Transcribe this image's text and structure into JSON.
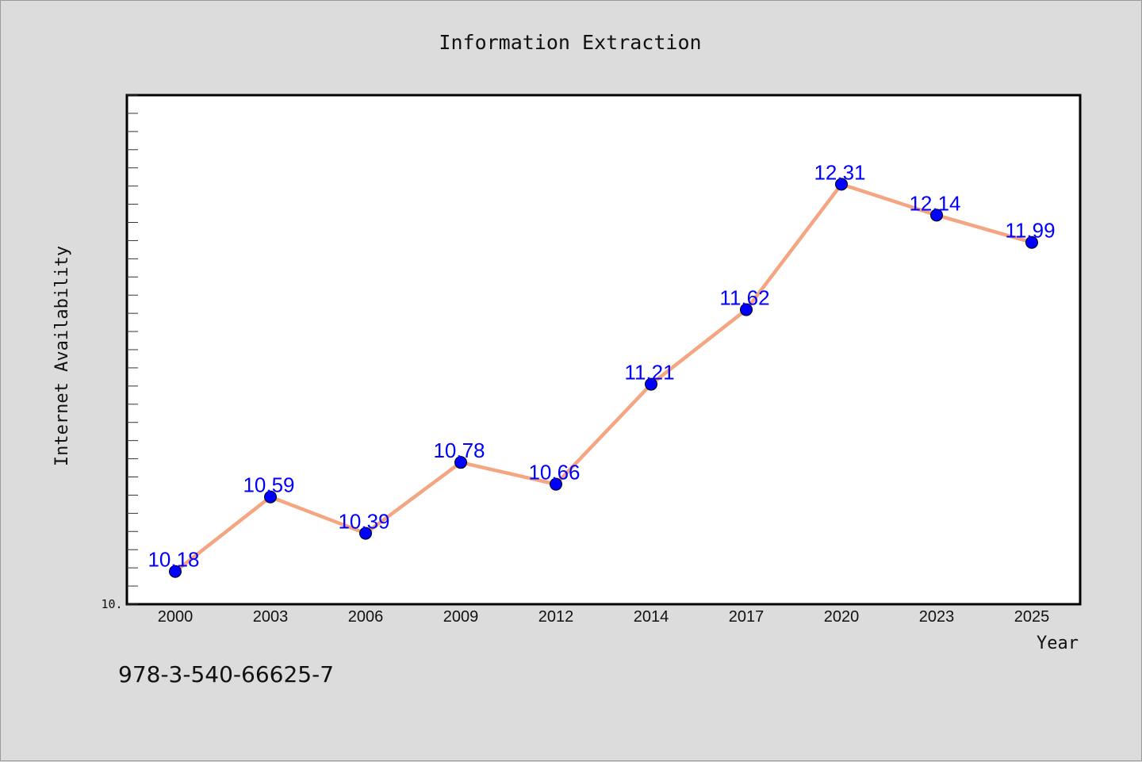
{
  "chart_data": {
    "type": "line",
    "title": "Information Extraction",
    "xlabel": "Year",
    "ylabel": "Internet Availability",
    "categories": [
      "2000",
      "2003",
      "2006",
      "2009",
      "2012",
      "2014",
      "2017",
      "2020",
      "2023",
      "2025"
    ],
    "values": [
      10.18,
      10.59,
      10.39,
      10.78,
      10.66,
      11.21,
      11.62,
      12.31,
      12.14,
      11.99
    ],
    "data_labels": [
      "10.18",
      "10.59",
      "10.39",
      "10.78",
      "10.66",
      "11.21",
      "11.62",
      "12.31",
      "12.14",
      "11.99"
    ],
    "ylim": [
      10.0,
      12.8
    ],
    "y_tick_labels": [
      "10."
    ],
    "grid": false,
    "legend": "none",
    "colors": {
      "line": "#f4a582",
      "marker": "#0000ff",
      "data_label": "#0000ff",
      "plot_background": "#ffffff",
      "figure_background": "#dcdcdc"
    }
  },
  "footer": {
    "code": "978-3-540-66625-7"
  }
}
